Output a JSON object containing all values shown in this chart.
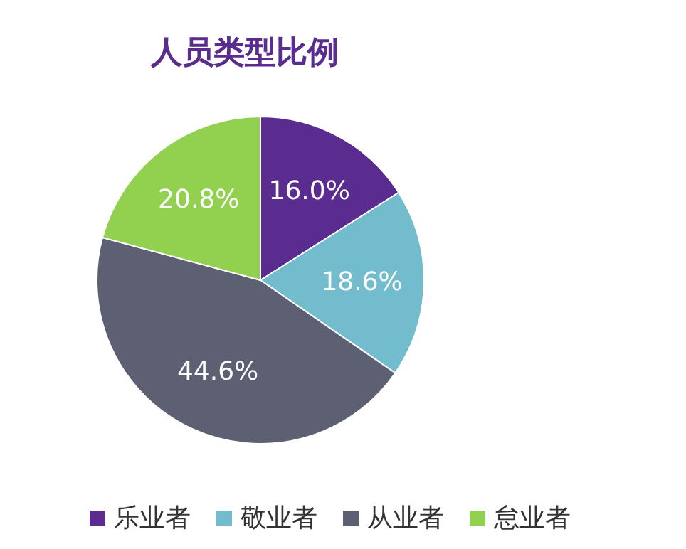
{
  "chart_data": {
    "type": "pie",
    "title": "人员类型比例",
    "categories": [
      "乐业者",
      "敬业者",
      "从业者",
      "怠业者"
    ],
    "values": [
      16.0,
      18.6,
      44.6,
      20.8
    ],
    "value_labels": [
      "16.0%",
      "18.6%",
      "44.6%",
      "20.8%"
    ],
    "colors": [
      "#5b2c8f",
      "#72bccd",
      "#5d5f73",
      "#92d050"
    ],
    "legend": "bottom"
  }
}
